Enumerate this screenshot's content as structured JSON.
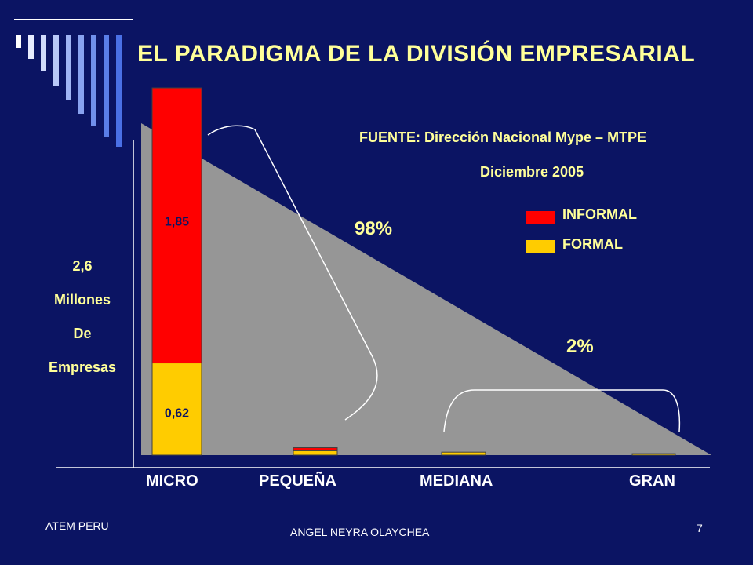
{
  "slide": {
    "title": "EL PARADIGMA DE LA DIVISIÓN EMPRESARIAL",
    "source": "FUENTE: Dirección Nacional Mype – MTPE",
    "date": "Diciembre 2005",
    "ylabel_lines": [
      "2,6",
      "Millones",
      "De",
      "Empresas"
    ],
    "pct_small_large": "98%",
    "pct_medium_large": "2%",
    "footer_left": "ATEM PERU",
    "footer_center": "ANGEL NEYRA OLAYCHEA",
    "page_number": "7"
  },
  "legend": [
    {
      "label": "INFORMAL",
      "color": "#ff0000"
    },
    {
      "label": "FORMAL",
      "color": "#ffcc00"
    }
  ],
  "chart_data": {
    "type": "bar",
    "stacked": true,
    "categories": [
      "MICRO",
      "PEQUEÑA",
      "MEDIANA",
      "GRAN"
    ],
    "series": [
      {
        "name": "FORMAL",
        "color": "#ffcc00",
        "values": [
          0.62,
          0.03,
          0.02,
          0.01
        ]
      },
      {
        "name": "INFORMAL",
        "color": "#ff0000",
        "values": [
          1.85,
          0.02,
          0,
          0
        ]
      }
    ],
    "data_labels": {
      "MICRO": {
        "FORMAL": "0,62",
        "INFORMAL": "1,85"
      }
    },
    "ylim": [
      0,
      2.47
    ],
    "background_shape": "gray descending triangle",
    "grid": false
  }
}
